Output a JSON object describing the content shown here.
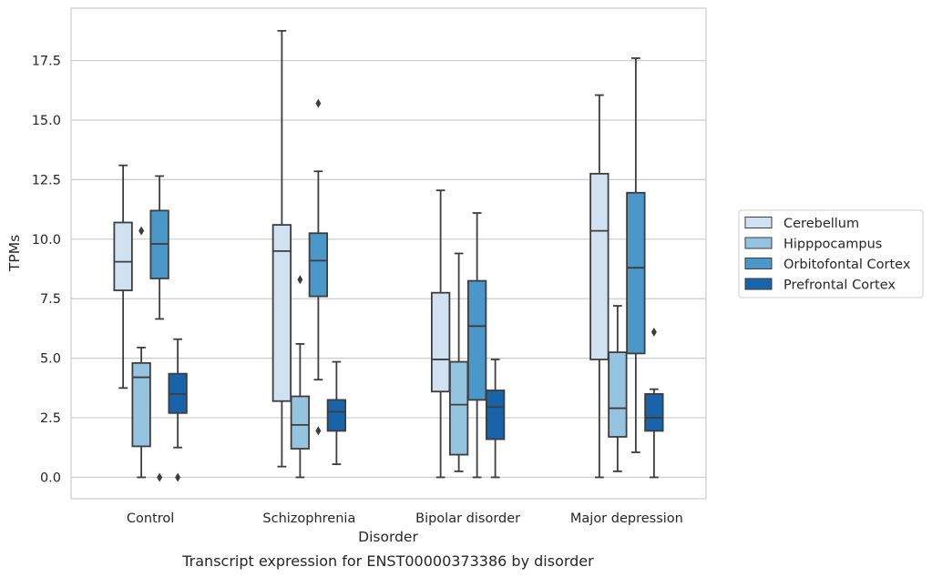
{
  "chart_data": {
    "type": "box",
    "caption": "Transcript expression for ENST00000373386 by disorder",
    "xlabel": "Disorder",
    "ylabel": "TPMs",
    "ylim": [
      -0.9,
      19.7
    ],
    "yticks": [
      0.0,
      2.5,
      5.0,
      7.5,
      10.0,
      12.5,
      15.0,
      17.5
    ],
    "ytick_labels": [
      "0.0",
      "2.5",
      "5.0",
      "7.5",
      "10.0",
      "12.5",
      "15.0",
      "17.5"
    ],
    "grid": "horizontal",
    "legend_position": "right",
    "categories": [
      "Control",
      "Schizophrenia",
      "Bipolar disorder",
      "Major depression"
    ],
    "series": [
      {
        "name": "Cerebellum",
        "color": "#d0e1f2",
        "boxes": [
          {
            "q1": 7.85,
            "median": 9.05,
            "q3": 10.7,
            "whislo": 3.75,
            "whishi": 13.1,
            "fliers": []
          },
          {
            "q1": 3.2,
            "median": 9.5,
            "q3": 10.6,
            "whislo": 0.45,
            "whishi": 18.75,
            "fliers": []
          },
          {
            "q1": 3.6,
            "median": 4.95,
            "q3": 7.75,
            "whislo": 0.0,
            "whishi": 12.05,
            "fliers": []
          },
          {
            "q1": 4.95,
            "median": 10.35,
            "q3": 12.75,
            "whislo": 0.0,
            "whishi": 16.05,
            "fliers": []
          }
        ]
      },
      {
        "name": "Hipppocampus",
        "color": "#94c4df",
        "boxes": [
          {
            "q1": 1.3,
            "median": 4.2,
            "q3": 4.8,
            "whislo": 0.0,
            "whishi": 5.45,
            "fliers": [
              10.35
            ]
          },
          {
            "q1": 1.2,
            "median": 2.2,
            "q3": 3.4,
            "whislo": 0.0,
            "whishi": 5.6,
            "fliers": [
              8.3
            ]
          },
          {
            "q1": 0.95,
            "median": 3.05,
            "q3": 4.85,
            "whislo": 0.25,
            "whishi": 9.4,
            "fliers": []
          },
          {
            "q1": 1.7,
            "median": 2.9,
            "q3": 5.25,
            "whislo": 0.25,
            "whishi": 7.2,
            "fliers": []
          }
        ]
      },
      {
        "name": "Orbitofontal Cortex",
        "color": "#4a98c9",
        "boxes": [
          {
            "q1": 8.35,
            "median": 9.8,
            "q3": 11.2,
            "whislo": 6.65,
            "whishi": 12.65,
            "fliers": [
              0.0
            ]
          },
          {
            "q1": 7.6,
            "median": 9.1,
            "q3": 10.25,
            "whislo": 4.1,
            "whishi": 12.85,
            "fliers": [
              15.7,
              1.95
            ]
          },
          {
            "q1": 3.25,
            "median": 6.35,
            "q3": 8.25,
            "whislo": 0.0,
            "whishi": 11.1,
            "fliers": []
          },
          {
            "q1": 5.2,
            "median": 8.8,
            "q3": 11.95,
            "whislo": 1.05,
            "whishi": 17.6,
            "fliers": []
          }
        ]
      },
      {
        "name": "Prefrontal Cortex",
        "color": "#1764ab",
        "boxes": [
          {
            "q1": 2.7,
            "median": 3.5,
            "q3": 4.35,
            "whislo": 1.25,
            "whishi": 5.8,
            "fliers": [
              0.0
            ]
          },
          {
            "q1": 1.95,
            "median": 2.75,
            "q3": 3.25,
            "whislo": 0.55,
            "whishi": 4.85,
            "fliers": []
          },
          {
            "q1": 1.6,
            "median": 2.95,
            "q3": 3.65,
            "whislo": 0.0,
            "whishi": 4.95,
            "fliers": []
          },
          {
            "q1": 1.95,
            "median": 2.5,
            "q3": 3.5,
            "whislo": 0.0,
            "whishi": 3.7,
            "fliers": [
              6.1
            ]
          }
        ]
      }
    ]
  }
}
